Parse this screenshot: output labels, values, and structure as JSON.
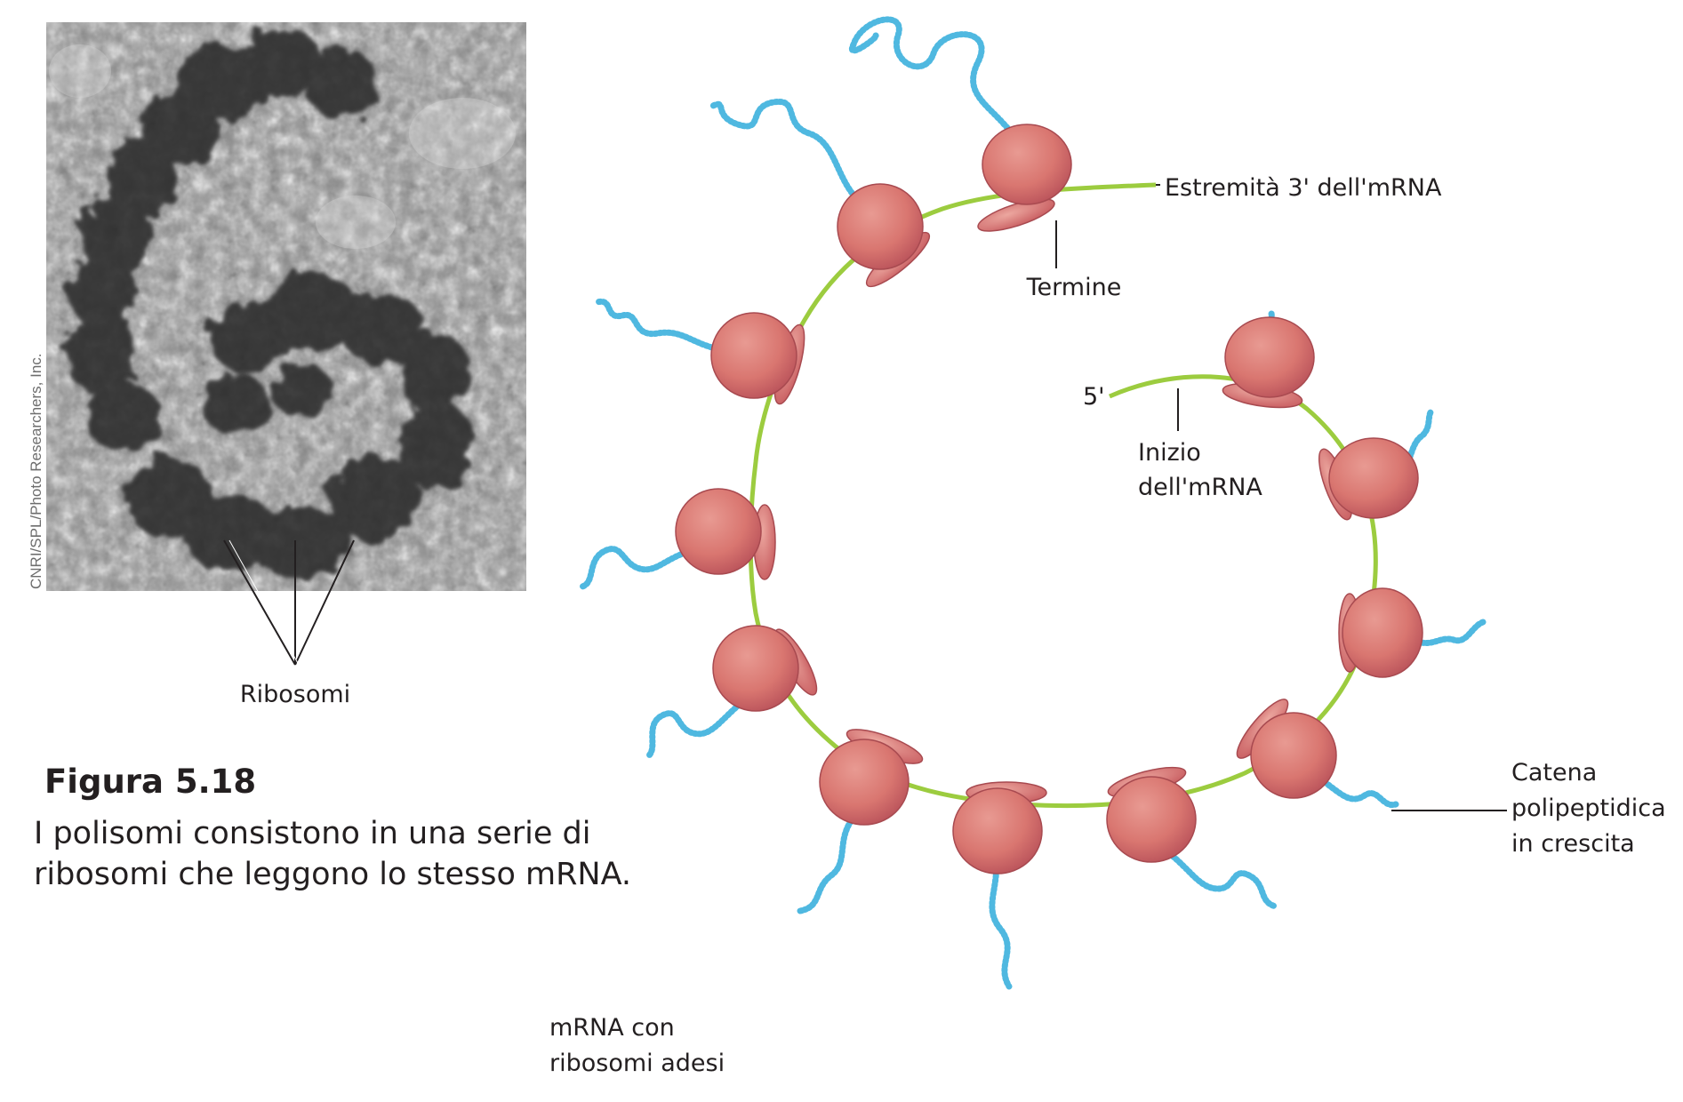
{
  "figure": {
    "title": "Figura 5.18",
    "caption": "I polisomi consistono in una serie di ribosomi che leggono lo stesso mRNA."
  },
  "photo": {
    "credit": "CNRI/SPL/Photo Researchers, Inc.",
    "label": "Ribosomi"
  },
  "diagram": {
    "labels": {
      "end_3": "Estremità 3' dell'mRNA",
      "termination": "Termine",
      "five_prime": "5'",
      "start_line1": "Inizio",
      "start_line2": "dell'mRNA",
      "chain_line1": "Catena",
      "chain_line2": "polipeptidica",
      "chain_line3": "in crescita",
      "bottom_line1": "mRNA con",
      "bottom_line2": "ribosomi adesi"
    },
    "ribosome_count": 12
  },
  "colors": {
    "mrna": "#9ccc3f",
    "ribosome": "#d97670",
    "ribosome_dark": "#c2565a",
    "polypeptide": "#4fb8e0"
  }
}
